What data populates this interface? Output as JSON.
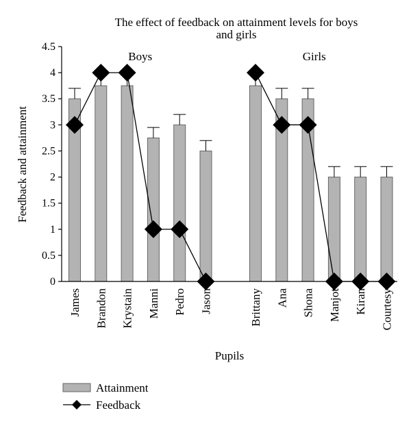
{
  "chart_data": {
    "type": "bar",
    "title": "The effect of feedback on attainment levels for boys and girls",
    "title_lines": [
      "The effect of feedback on attainment levels for boys",
      "and girls"
    ],
    "xlabel": "Pupils",
    "ylabel": "Feedback and attainment",
    "ylim": [
      0,
      4.5
    ],
    "yticks": [
      0,
      0.5,
      1,
      1.5,
      2,
      2.5,
      3,
      3.5,
      4,
      4.5
    ],
    "ytick_labels": [
      "0",
      "0.5",
      "1",
      "1.5",
      "2",
      "2.5",
      "3",
      "3.5",
      "4",
      "4.5"
    ],
    "grid": false,
    "legend_position": "bottom-left",
    "groups": [
      {
        "label": "Boys",
        "categories": [
          "James",
          "Brandon",
          "Krystain",
          "Manni",
          "Pedro",
          "Jason"
        ],
        "attainment": [
          3.5,
          3.75,
          3.75,
          2.75,
          3.0,
          2.5
        ],
        "error": [
          0.2,
          0.2,
          0.2,
          0.2,
          0.2,
          0.2
        ],
        "feedback": [
          3,
          4,
          4,
          1,
          1,
          0
        ]
      },
      {
        "label": "Girls",
        "categories": [
          "Brittany",
          "Ana",
          "Shona",
          "Manjot",
          "Kiran",
          "Courtesy"
        ],
        "attainment": [
          3.75,
          3.5,
          3.5,
          2.0,
          2.0,
          2.0
        ],
        "error": [
          0.2,
          0.2,
          0.2,
          0.2,
          0.2,
          0.2
        ],
        "feedback": [
          4,
          3,
          3,
          0,
          0,
          0
        ]
      }
    ],
    "series": [
      {
        "name": "Attainment",
        "kind": "bar",
        "color": "#b3b3b3"
      },
      {
        "name": "Feedback",
        "kind": "line-diamond",
        "color": "#000000"
      }
    ]
  }
}
